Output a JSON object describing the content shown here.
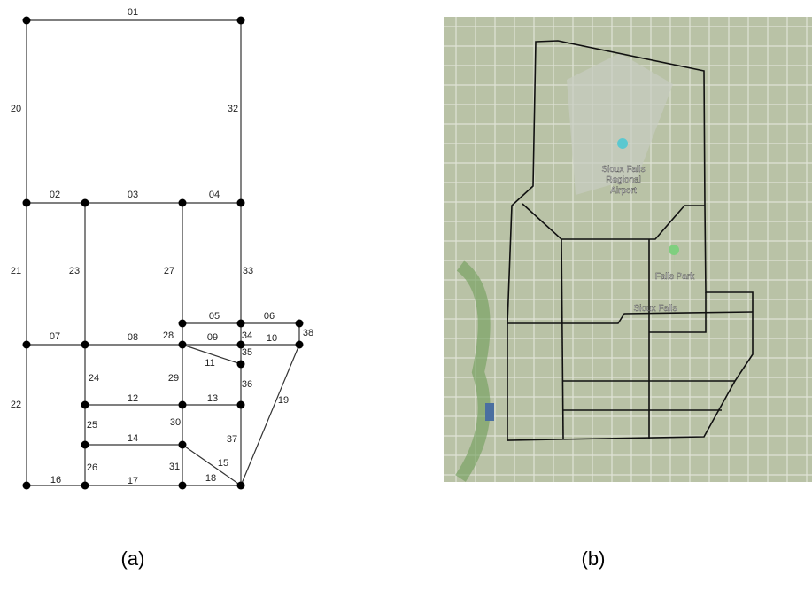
{
  "network": {
    "edges": [
      "01",
      "02",
      "03",
      "04",
      "05",
      "06",
      "07",
      "08",
      "09",
      "10",
      "11",
      "12",
      "13",
      "14",
      "15",
      "16",
      "17",
      "18",
      "19",
      "20",
      "21",
      "22",
      "23",
      "24",
      "25",
      "26",
      "27",
      "28",
      "29",
      "30",
      "31",
      "32",
      "33",
      "34",
      "35",
      "36",
      "37",
      "38"
    ]
  },
  "map": {
    "airport_lines": [
      "Sioux Falls",
      "Regional",
      "Airport"
    ],
    "park": "Falls Park",
    "city": "Sioux Falls"
  },
  "captions": [
    "(a)",
    "(b)"
  ]
}
